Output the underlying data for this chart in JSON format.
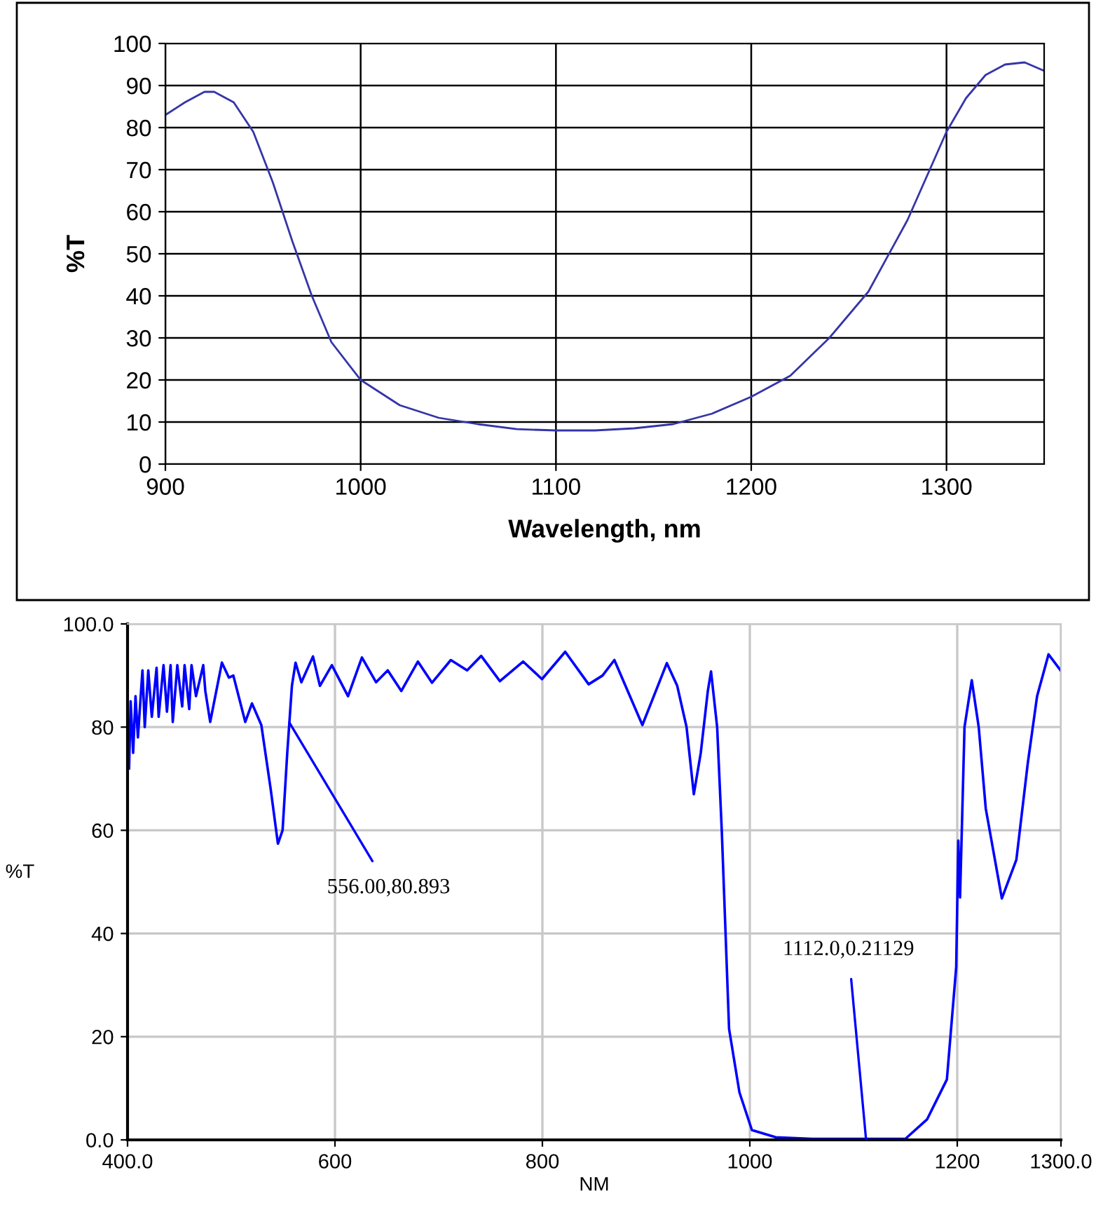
{
  "chart_data": [
    {
      "type": "line",
      "xlabel": "Wavelength, nm",
      "ylabel": "%T",
      "color": "#3535a8",
      "x": [
        900,
        910,
        920,
        925,
        935,
        945,
        955,
        965,
        975,
        985,
        1000,
        1020,
        1040,
        1060,
        1080,
        1100,
        1120,
        1140,
        1160,
        1180,
        1200,
        1220,
        1240,
        1260,
        1280,
        1300,
        1310,
        1320,
        1330,
        1340,
        1350
      ],
      "values": [
        83,
        86,
        88.5,
        88.5,
        86,
        79,
        67,
        53,
        40,
        29,
        20,
        14,
        11,
        9.5,
        8.3,
        8,
        8,
        8.5,
        9.5,
        12,
        16,
        21,
        30,
        41,
        58,
        79,
        87,
        92.5,
        95,
        95.5,
        93.5
      ],
      "xlim": [
        900,
        1350
      ],
      "xticks": [
        900,
        1000,
        1100,
        1200,
        1300
      ],
      "ylim": [
        0,
        100
      ],
      "yticks": [
        0,
        10,
        20,
        30,
        40,
        50,
        60,
        70,
        80,
        90,
        100
      ],
      "grid": true
    },
    {
      "type": "line",
      "xlabel": "NM",
      "ylabel": "%T",
      "color": "#0000ff",
      "x": [
        401.5,
        403,
        405.4,
        407.7,
        410,
        414.4,
        416.6,
        420,
        423.4,
        428,
        430,
        434.7,
        438,
        441.5,
        443.6,
        448,
        452.7,
        455,
        459.5,
        461.7,
        466,
        473,
        475,
        479.7,
        491,
        497.7,
        502,
        513.5,
        520,
        529,
        538,
        545,
        549.5,
        554,
        558.5,
        562,
        567.6,
        578.8,
        585.5,
        597,
        612.6,
        626,
        639.6,
        650.9,
        664,
        680,
        693.6,
        711.7,
        727.4,
        741,
        759,
        781.5,
        799.6,
        822,
        844.6,
        858,
        869.4,
        896.4,
        907.4,
        920,
        930,
        939,
        946,
        952.7,
        959.5,
        962.6,
        968.5,
        973,
        980,
        990,
        1002,
        1025,
        1060,
        1112,
        1150,
        1171,
        1190,
        1199,
        1201,
        1202.7,
        1207,
        1214,
        1220.7,
        1227.5,
        1243,
        1257,
        1268,
        1277,
        1288,
        1299.6
      ],
      "values": [
        72,
        85,
        75,
        86,
        78,
        91,
        80,
        91,
        82,
        91.5,
        82,
        92,
        83,
        92,
        81,
        92,
        84,
        92,
        83.5,
        92,
        86,
        92,
        87,
        81,
        92.5,
        89.6,
        90,
        81,
        84.6,
        80.4,
        68,
        57.4,
        60,
        75,
        88,
        92.5,
        88.7,
        93.7,
        88,
        92,
        86,
        93.5,
        88.7,
        91,
        87,
        92.7,
        88.6,
        93,
        91,
        93.8,
        88.9,
        92.7,
        89.3,
        94.6,
        88.3,
        90,
        93,
        80.4,
        86,
        92.4,
        88,
        80,
        67,
        75,
        87,
        90.8,
        80,
        59.7,
        21.5,
        9.2,
        1.9,
        0.5,
        0.2,
        0.21129,
        0.2,
        4,
        11.7,
        33.5,
        58,
        47,
        80,
        89.1,
        80,
        64.2,
        46.8,
        54.3,
        73,
        86,
        94.1,
        91
      ],
      "xlim": [
        400,
        1300
      ],
      "xticks": [
        {
          "value": 400,
          "label": "400.0"
        },
        600,
        800,
        1000,
        1200,
        {
          "value": 1300,
          "label": "1300.0"
        }
      ],
      "ylim": [
        0,
        100
      ],
      "yticks": [
        {
          "value": 0,
          "label": "0.0"
        },
        20,
        40,
        60,
        80,
        {
          "value": 100,
          "label": "100.0"
        }
      ],
      "grid": true,
      "annotations": [
        {
          "text": "556.00,80.893",
          "x": 556,
          "y": 80.893
        },
        {
          "text": "1112.0,0.21129",
          "x": 1112,
          "y": 0.21129
        }
      ]
    }
  ]
}
